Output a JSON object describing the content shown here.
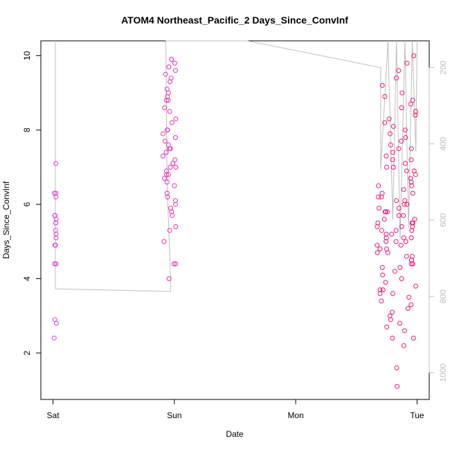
{
  "chart_data": {
    "type": "scatter",
    "title": "ATOM4 Northeast_Pacific_2 Days_Since_ConvInf",
    "xlabel": "Date",
    "ylabel": "Days_Since_ConvInf",
    "x_tick_labels": [
      "Sat",
      "Sun",
      "Mon",
      "Tue"
    ],
    "x_tick_days": [
      0,
      1,
      2,
      3
    ],
    "xlim_days": [
      -0.1,
      3.1
    ],
    "ylim": [
      0.75,
      10.4
    ],
    "y_ticks": [
      2,
      4,
      6,
      8,
      10
    ],
    "y2_ticks": [
      200,
      400,
      600,
      800,
      1000
    ],
    "y2lim": [
      1070,
      130
    ],
    "grid": false,
    "legend": "none",
    "colors": {
      "points_start": "#e040e0",
      "points_end": "#f0106a",
      "line": "#bdbdbd",
      "axis": "#000000",
      "secondary_axis": "#bdbdbd"
    },
    "clusters": [
      {
        "day_center": 0.02,
        "day_spread": 0.01,
        "y_values": [
          2.4,
          2.8,
          2.9,
          4.4,
          4.4,
          4.9,
          4.9,
          5.1,
          5.2,
          5.3,
          5.5,
          5.5,
          5.6,
          5.7,
          5.7,
          6.2,
          6.3,
          6.3,
          7.1
        ]
      },
      {
        "day_center": 0.96,
        "day_spread": 0.06,
        "y_values": [
          4.0,
          4.4,
          4.4,
          5.0,
          5.3,
          5.4,
          5.7,
          5.8,
          5.9,
          6.0,
          6.1,
          6.2,
          6.3,
          6.5,
          6.6,
          6.7,
          6.8,
          6.8,
          6.9,
          7.0,
          7.0,
          7.1,
          7.2,
          7.3,
          7.4,
          7.5,
          7.5,
          7.6,
          7.7,
          7.8,
          7.9,
          8.0,
          8.0,
          8.2,
          8.3,
          8.5,
          8.6,
          8.8,
          8.8,
          8.9,
          9.0,
          9.1,
          9.3,
          9.4,
          9.5,
          9.6,
          9.7,
          9.8,
          9.9,
          9.9
        ]
      },
      {
        "day_center": 2.83,
        "day_spread": 0.16,
        "y_values": [
          1.1,
          1.6,
          2.2,
          2.4,
          2.4,
          2.6,
          2.7,
          2.8,
          2.9,
          3.0,
          3.1,
          3.2,
          3.3,
          3.4,
          3.5,
          3.6,
          3.6,
          3.7,
          3.7,
          3.8,
          3.9,
          4.0,
          4.1,
          4.2,
          4.3,
          4.3,
          4.4,
          4.4,
          4.5,
          4.5,
          4.6,
          4.6,
          4.7,
          4.7,
          4.8,
          4.8,
          4.9,
          4.9,
          5.0,
          5.0,
          5.0,
          5.1,
          5.1,
          5.1,
          5.2,
          5.2,
          5.3,
          5.3,
          5.3,
          5.4,
          5.4,
          5.4,
          5.5,
          5.5,
          5.5,
          5.6,
          5.6,
          5.7,
          5.7,
          5.8,
          5.8,
          5.8,
          5.9,
          5.9,
          6.0,
          6.0,
          6.1,
          6.1,
          6.2,
          6.2,
          6.3,
          6.3,
          6.4,
          6.5,
          6.5,
          6.6,
          6.7,
          6.8,
          6.9,
          6.9,
          7.0,
          7.0,
          7.1,
          7.2,
          7.2,
          7.3,
          7.4,
          7.5,
          7.5,
          7.6,
          7.7,
          7.8,
          7.9,
          8.0,
          8.1,
          8.2,
          8.3,
          8.4,
          8.5,
          8.6,
          8.7,
          8.8,
          8.9,
          9.0,
          9.2,
          9.4,
          9.6,
          9.8,
          10.0
        ]
      }
    ],
    "line_path": [
      {
        "day": 0.02,
        "y2": 130
      },
      {
        "day": 0.02,
        "y2": 780
      },
      {
        "day": 0.97,
        "y2": 787
      },
      {
        "day": 0.97,
        "y2": 765
      },
      {
        "day": 0.94,
        "y2": 500
      },
      {
        "day": 0.93,
        "y2": 130
      },
      {
        "day": 1.6,
        "y2": 130
      },
      {
        "day": 2.7,
        "y2": 200
      },
      {
        "day": 2.7,
        "y2": 470
      },
      {
        "day": 2.76,
        "y2": 130
      },
      {
        "day": 2.8,
        "y2": 600
      },
      {
        "day": 2.83,
        "y2": 130
      },
      {
        "day": 2.86,
        "y2": 650
      },
      {
        "day": 2.9,
        "y2": 130
      },
      {
        "day": 2.93,
        "y2": 620
      },
      {
        "day": 2.96,
        "y2": 130
      },
      {
        "day": 2.99,
        "y2": 420
      },
      {
        "day": 3.0,
        "y2": 130
      }
    ]
  }
}
